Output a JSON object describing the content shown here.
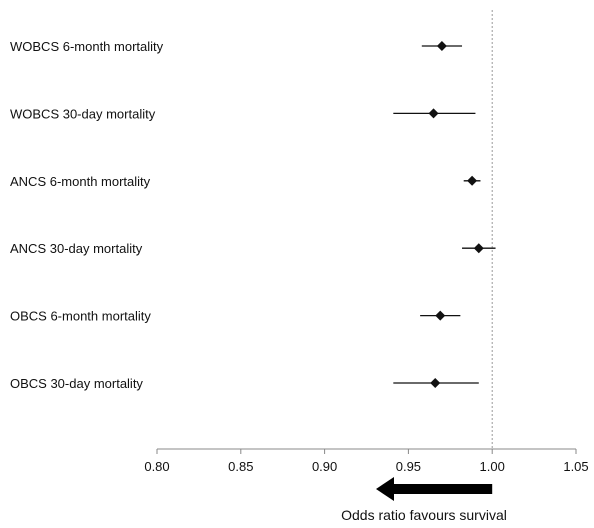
{
  "chart_data": {
    "type": "forest",
    "xlim": [
      0.8,
      1.05
    ],
    "x_ticks": [
      "0.80",
      "0.85",
      "0.90",
      "0.95",
      "1.00",
      "1.05"
    ],
    "reference_line": 1.0,
    "rows": [
      {
        "label": "WOBCS 6-month mortality",
        "estimate": 0.97,
        "ci_low": 0.958,
        "ci_high": 0.982
      },
      {
        "label": "WOBCS 30-day mortality",
        "estimate": 0.965,
        "ci_low": 0.941,
        "ci_high": 0.99
      },
      {
        "label": "ANCS 6-month mortality",
        "estimate": 0.988,
        "ci_low": 0.983,
        "ci_high": 0.993
      },
      {
        "label": "ANCS 30-day mortality",
        "estimate": 0.992,
        "ci_low": 0.982,
        "ci_high": 1.002
      },
      {
        "label": "OBCS 6-month mortality",
        "estimate": 0.969,
        "ci_low": 0.957,
        "ci_high": 0.981
      },
      {
        "label": "OBCS 30-day mortality",
        "estimate": 0.966,
        "ci_low": 0.941,
        "ci_high": 0.992
      }
    ],
    "annotation": "Odds ratio favours survival",
    "arrow_direction": "left",
    "marker": "diamond",
    "colors": {
      "marker": "#111111",
      "ci": "#111111",
      "reference": "#999999",
      "arrow": "#000000"
    }
  }
}
